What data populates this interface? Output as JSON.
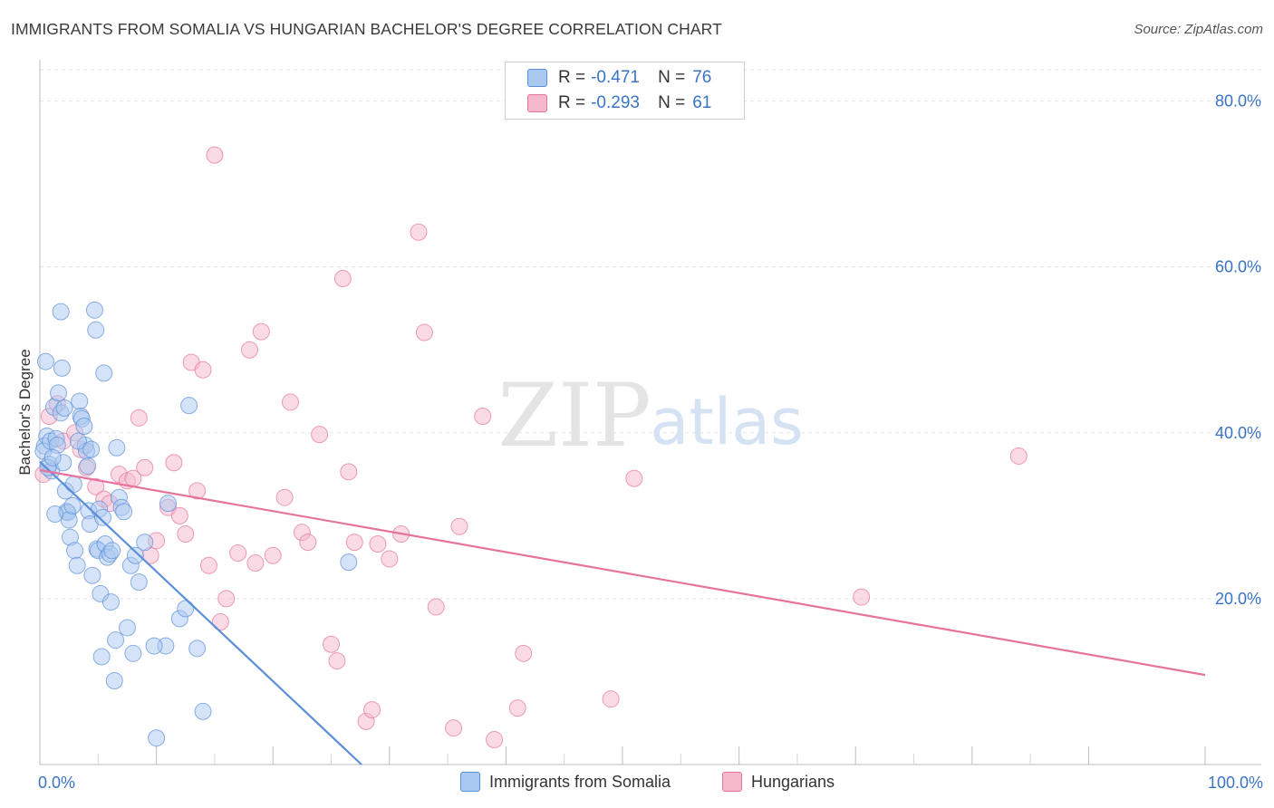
{
  "title": "IMMIGRANTS FROM SOMALIA VS HUNGARIAN BACHELOR'S DEGREE CORRELATION CHART",
  "source": "Source: ZipAtlas.com",
  "watermark": {
    "zip": "ZIP",
    "atlas": "atlas"
  },
  "legend_top": {
    "rows": [
      {
        "r_label": "R =",
        "r_value": "-0.471",
        "n_label": "N =",
        "n_value": "76",
        "color": "#a9c8f0"
      },
      {
        "r_label": "R =",
        "r_value": "-0.293",
        "n_label": "N =",
        "n_value": "61",
        "color": "#f5b8cb"
      }
    ]
  },
  "chart_data": {
    "type": "scatter",
    "title": "IMMIGRANTS FROM SOMALIA VS HUNGARIAN BACHELOR'S DEGREE CORRELATION CHART",
    "xlabel": "",
    "ylabel": "Bachelor's Degree",
    "xlim": [
      0,
      100
    ],
    "ylim": [
      0,
      84
    ],
    "x_tick_labels": [
      "0.0%",
      "100.0%"
    ],
    "y_ticks": [
      20,
      40,
      60,
      80
    ],
    "y_tick_labels": [
      "20.0%",
      "40.0%",
      "60.0%",
      "80.0%"
    ],
    "grid": true,
    "series": [
      {
        "name": "Immigrants from Somalia",
        "color": "#5b8fd8",
        "fill": "#a9c8f0",
        "trend": {
          "x0": 0,
          "y0": 36.5,
          "x1": 27.6,
          "y1": 0
        },
        "points": [
          [
            0.5,
            48.6
          ],
          [
            0.6,
            39.6
          ],
          [
            0.4,
            38.4
          ],
          [
            0.3,
            37.8
          ],
          [
            0.8,
            36.2
          ],
          [
            0.9,
            39.0
          ],
          [
            1.0,
            35.4
          ],
          [
            1.2,
            43.1
          ],
          [
            1.4,
            39.3
          ],
          [
            1.5,
            38.5
          ],
          [
            1.6,
            44.8
          ],
          [
            1.8,
            42.4
          ],
          [
            1.9,
            47.8
          ],
          [
            2.0,
            36.4
          ],
          [
            2.2,
            33.0
          ],
          [
            2.3,
            30.5
          ],
          [
            2.4,
            30.4
          ],
          [
            2.5,
            29.5
          ],
          [
            2.6,
            27.4
          ],
          [
            2.8,
            31.2
          ],
          [
            3.0,
            25.8
          ],
          [
            3.2,
            24.0
          ],
          [
            3.4,
            43.8
          ],
          [
            3.5,
            42.0
          ],
          [
            3.6,
            41.7
          ],
          [
            3.8,
            40.8
          ],
          [
            3.9,
            38.5
          ],
          [
            4.0,
            37.8
          ],
          [
            4.1,
            36.0
          ],
          [
            4.2,
            30.6
          ],
          [
            4.3,
            29.0
          ],
          [
            4.5,
            22.8
          ],
          [
            4.7,
            54.8
          ],
          [
            4.8,
            52.4
          ],
          [
            4.9,
            26.0
          ],
          [
            5.0,
            25.8
          ],
          [
            5.1,
            30.8
          ],
          [
            5.2,
            20.6
          ],
          [
            5.3,
            13.0
          ],
          [
            5.4,
            29.8
          ],
          [
            5.5,
            47.2
          ],
          [
            5.6,
            26.6
          ],
          [
            5.8,
            25.0
          ],
          [
            6.0,
            25.4
          ],
          [
            6.1,
            19.6
          ],
          [
            6.2,
            25.8
          ],
          [
            6.4,
            10.1
          ],
          [
            6.5,
            15.0
          ],
          [
            6.8,
            32.2
          ],
          [
            7.0,
            31.0
          ],
          [
            7.2,
            30.5
          ],
          [
            7.5,
            16.5
          ],
          [
            7.8,
            24.0
          ],
          [
            8.0,
            13.4
          ],
          [
            8.5,
            22.0
          ],
          [
            9.0,
            26.8
          ],
          [
            1.8,
            54.6
          ],
          [
            10.0,
            3.2
          ],
          [
            11.0,
            31.5
          ],
          [
            12.0,
            17.6
          ],
          [
            12.5,
            18.8
          ],
          [
            13.5,
            14.0
          ],
          [
            14.0,
            6.4
          ],
          [
            12.8,
            43.3
          ],
          [
            26.5,
            24.4
          ],
          [
            0.7,
            35.8
          ],
          [
            1.1,
            37.0
          ],
          [
            2.1,
            43.0
          ],
          [
            3.3,
            39.0
          ],
          [
            4.4,
            38.0
          ],
          [
            6.6,
            38.2
          ],
          [
            10.8,
            14.3
          ],
          [
            9.8,
            14.3
          ],
          [
            8.2,
            25.2
          ],
          [
            2.9,
            33.8
          ],
          [
            1.3,
            30.2
          ]
        ]
      },
      {
        "name": "Hungarians",
        "color": "#e6739d",
        "fill": "#f5b8cb",
        "trend": {
          "x0": 0,
          "y0": 35.5,
          "x1": 100,
          "y1": 10.8
        },
        "points": [
          [
            0.3,
            35.0
          ],
          [
            0.8,
            42.0
          ],
          [
            1.5,
            43.5
          ],
          [
            2.0,
            39.0
          ],
          [
            3.0,
            40.0
          ],
          [
            3.5,
            38.0
          ],
          [
            4.0,
            35.8
          ],
          [
            4.8,
            33.5
          ],
          [
            5.5,
            32.0
          ],
          [
            6.0,
            31.5
          ],
          [
            6.8,
            35.0
          ],
          [
            7.5,
            34.2
          ],
          [
            8.0,
            34.5
          ],
          [
            8.5,
            41.8
          ],
          [
            9.0,
            35.8
          ],
          [
            9.5,
            25.2
          ],
          [
            10.0,
            27.0
          ],
          [
            11.0,
            31.0
          ],
          [
            11.5,
            36.4
          ],
          [
            12.0,
            30.0
          ],
          [
            12.5,
            27.8
          ],
          [
            13.0,
            48.5
          ],
          [
            13.5,
            33.0
          ],
          [
            14.0,
            47.6
          ],
          [
            14.5,
            24.0
          ],
          [
            15.5,
            17.2
          ],
          [
            16.0,
            20.0
          ],
          [
            17.0,
            25.5
          ],
          [
            18.0,
            50.0
          ],
          [
            18.5,
            24.3
          ],
          [
            19.0,
            52.2
          ],
          [
            20.0,
            25.2
          ],
          [
            21.0,
            32.2
          ],
          [
            21.5,
            43.7
          ],
          [
            22.5,
            28.0
          ],
          [
            23.0,
            26.8
          ],
          [
            24.0,
            39.8
          ],
          [
            25.0,
            14.5
          ],
          [
            25.5,
            12.5
          ],
          [
            26.5,
            35.3
          ],
          [
            27.0,
            26.8
          ],
          [
            28.0,
            5.2
          ],
          [
            28.5,
            6.6
          ],
          [
            29.0,
            26.6
          ],
          [
            30.0,
            24.8
          ],
          [
            31.0,
            27.8
          ],
          [
            32.5,
            64.2
          ],
          [
            33.0,
            52.1
          ],
          [
            34.0,
            19.0
          ],
          [
            35.5,
            4.4
          ],
          [
            36.0,
            28.7
          ],
          [
            38.0,
            42.0
          ],
          [
            39.0,
            3.0
          ],
          [
            41.0,
            6.8
          ],
          [
            41.5,
            13.4
          ],
          [
            49.0,
            7.9
          ],
          [
            51.0,
            34.5
          ],
          [
            70.5,
            20.2
          ],
          [
            84.0,
            37.2
          ],
          [
            15.0,
            73.5
          ],
          [
            26.0,
            58.6
          ]
        ]
      }
    ]
  },
  "legend_bottom": [
    {
      "label": "Immigrants from Somalia",
      "color": "#a9c8f0"
    },
    {
      "label": "Hungarians",
      "color": "#f5b8cb"
    }
  ]
}
